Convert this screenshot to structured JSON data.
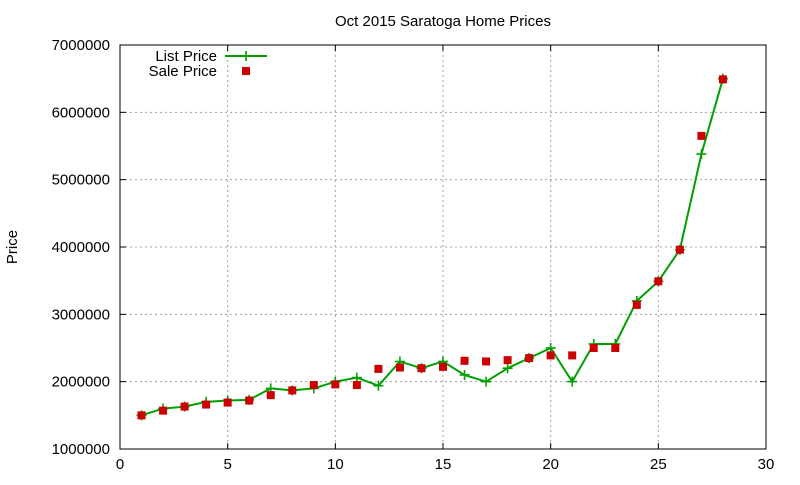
{
  "chart_data": {
    "type": "line",
    "title": "Oct 2015 Saratoga Home Prices",
    "xlabel": "",
    "ylabel": "Price",
    "xlim": [
      0,
      30
    ],
    "ylim": [
      1000000,
      7000000
    ],
    "x_ticks": [
      "0",
      "5",
      "10",
      "15",
      "20",
      "25",
      "30"
    ],
    "y_ticks": [
      "1000000",
      "2000000",
      "3000000",
      "4000000",
      "5000000",
      "6000000",
      "7000000"
    ],
    "grid": true,
    "legend_position": "top-left",
    "series": [
      {
        "name": "List Price",
        "style": "line-with-plus-markers",
        "color": "#00a000",
        "x": [
          1,
          2,
          3,
          4,
          5,
          6,
          7,
          8,
          9,
          10,
          11,
          12,
          13,
          14,
          15,
          16,
          17,
          18,
          19,
          20,
          21,
          22,
          23,
          24,
          25,
          26,
          27,
          28
        ],
        "values": [
          1500000,
          1600000,
          1630000,
          1700000,
          1720000,
          1730000,
          1900000,
          1870000,
          1900000,
          2000000,
          2060000,
          1940000,
          2300000,
          2200000,
          2300000,
          2100000,
          2000000,
          2200000,
          2350000,
          2500000,
          2000000,
          2560000,
          2560000,
          3200000,
          3490000,
          3960000,
          5380000,
          6500000
        ]
      },
      {
        "name": "Sale Price",
        "style": "square-markers",
        "color": "#cc0000",
        "x": [
          1,
          2,
          3,
          4,
          5,
          6,
          7,
          8,
          9,
          10,
          11,
          12,
          13,
          14,
          15,
          16,
          17,
          18,
          19,
          20,
          21,
          22,
          23,
          24,
          25,
          26,
          27,
          28
        ],
        "values": [
          1500000,
          1570000,
          1630000,
          1660000,
          1690000,
          1720000,
          1800000,
          1870000,
          1950000,
          1960000,
          1950000,
          2190000,
          2210000,
          2200000,
          2220000,
          2310000,
          2300000,
          2320000,
          2350000,
          2390000,
          2390000,
          2500000,
          2500000,
          3140000,
          3490000,
          3960000,
          5650000,
          6490000
        ]
      }
    ]
  }
}
